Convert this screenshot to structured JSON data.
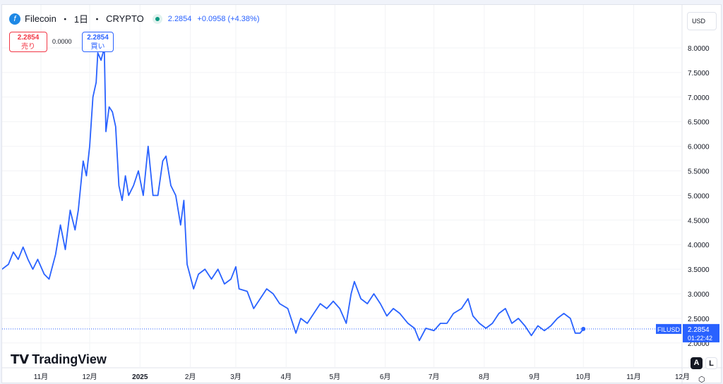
{
  "header": {
    "symbol": "Filecoin",
    "interval": "1日",
    "exchange": "CRYPTO",
    "sep": "・",
    "price": "2.2854",
    "change": "+0.0958 (+4.38%)",
    "icon": "filecoin-logo"
  },
  "trade": {
    "sell_price": "2.2854",
    "sell_label": "売り",
    "spread": "0.0000",
    "buy_price": "2.2854",
    "buy_label": "買い"
  },
  "currency": "USD",
  "brand": "TradingView",
  "scale_buttons": {
    "auto": "A",
    "log": "L"
  },
  "price_tag": {
    "symbol": "FILUSD",
    "price": "2.2854",
    "countdown": "01:22:42"
  },
  "colors": {
    "line": "#2962ff",
    "tag": "#2962ff"
  },
  "chart_data": {
    "type": "line",
    "title": "Filecoin · 1日 · CRYPTO",
    "ylim": [
      1.8,
      8.3
    ],
    "yticks": [
      "2.0000",
      "2.5000",
      "3.0000",
      "3.5000",
      "4.0000",
      "4.5000",
      "5.0000",
      "5.5000",
      "6.0000",
      "6.5000",
      "7.0000",
      "7.5000",
      "8.0000"
    ],
    "xticks": [
      {
        "label": "11月",
        "date": "2024-11-01"
      },
      {
        "label": "12月",
        "date": "2024-12-01"
      },
      {
        "label": "2025",
        "date": "2025-01-01"
      },
      {
        "label": "2月",
        "date": "2025-02-01"
      },
      {
        "label": "3月",
        "date": "2025-03-01"
      },
      {
        "label": "4月",
        "date": "2025-04-01"
      },
      {
        "label": "5月",
        "date": "2025-05-01"
      },
      {
        "label": "6月",
        "date": "2025-06-01"
      },
      {
        "label": "7月",
        "date": "2025-07-01"
      },
      {
        "label": "8月",
        "date": "2025-08-01"
      },
      {
        "label": "9月",
        "date": "2025-09-01"
      },
      {
        "label": "10月",
        "date": "2025-10-01"
      },
      {
        "label": "11月",
        "date": "2025-11-01"
      },
      {
        "label": "12月",
        "date": "2025-12-01"
      }
    ],
    "grid": true,
    "series": [
      {
        "name": "FILUSD",
        "points": [
          [
            "2024-10-08",
            3.5
          ],
          [
            "2024-10-12",
            3.6
          ],
          [
            "2024-10-15",
            3.85
          ],
          [
            "2024-10-18",
            3.7
          ],
          [
            "2024-10-21",
            3.95
          ],
          [
            "2024-10-24",
            3.7
          ],
          [
            "2024-10-27",
            3.5
          ],
          [
            "2024-10-30",
            3.7
          ],
          [
            "2024-11-03",
            3.4
          ],
          [
            "2024-11-06",
            3.3
          ],
          [
            "2024-11-10",
            3.8
          ],
          [
            "2024-11-13",
            4.4
          ],
          [
            "2024-11-16",
            3.9
          ],
          [
            "2024-11-19",
            4.7
          ],
          [
            "2024-11-22",
            4.3
          ],
          [
            "2024-11-24",
            4.7
          ],
          [
            "2024-11-27",
            5.7
          ],
          [
            "2024-11-29",
            5.4
          ],
          [
            "2024-12-01",
            6.0
          ],
          [
            "2024-12-03",
            7.0
          ],
          [
            "2024-12-05",
            7.3
          ],
          [
            "2024-12-06",
            7.9
          ],
          [
            "2024-12-08",
            7.75
          ],
          [
            "2024-12-10",
            8.0
          ],
          [
            "2024-12-11",
            6.3
          ],
          [
            "2024-12-13",
            6.8
          ],
          [
            "2024-12-15",
            6.7
          ],
          [
            "2024-12-17",
            6.4
          ],
          [
            "2024-12-19",
            5.2
          ],
          [
            "2024-12-21",
            4.9
          ],
          [
            "2024-12-23",
            5.4
          ],
          [
            "2024-12-25",
            5.0
          ],
          [
            "2024-12-28",
            5.2
          ],
          [
            "2024-12-31",
            5.5
          ],
          [
            "2025-01-03",
            5.0
          ],
          [
            "2025-01-06",
            6.0
          ],
          [
            "2025-01-09",
            5.0
          ],
          [
            "2025-01-12",
            5.0
          ],
          [
            "2025-01-15",
            5.7
          ],
          [
            "2025-01-17",
            5.8
          ],
          [
            "2025-01-20",
            5.2
          ],
          [
            "2025-01-23",
            5.0
          ],
          [
            "2025-01-26",
            4.4
          ],
          [
            "2025-01-28",
            4.9
          ],
          [
            "2025-01-30",
            3.6
          ],
          [
            "2025-02-03",
            3.1
          ],
          [
            "2025-02-06",
            3.4
          ],
          [
            "2025-02-10",
            3.5
          ],
          [
            "2025-02-14",
            3.3
          ],
          [
            "2025-02-18",
            3.5
          ],
          [
            "2025-02-22",
            3.2
          ],
          [
            "2025-02-26",
            3.3
          ],
          [
            "2025-03-01",
            3.55
          ],
          [
            "2025-03-03",
            3.1
          ],
          [
            "2025-03-08",
            3.05
          ],
          [
            "2025-03-12",
            2.7
          ],
          [
            "2025-03-16",
            2.9
          ],
          [
            "2025-03-20",
            3.1
          ],
          [
            "2025-03-24",
            3.0
          ],
          [
            "2025-03-28",
            2.8
          ],
          [
            "2025-04-02",
            2.7
          ],
          [
            "2025-04-07",
            2.2
          ],
          [
            "2025-04-10",
            2.5
          ],
          [
            "2025-04-14",
            2.4
          ],
          [
            "2025-04-18",
            2.6
          ],
          [
            "2025-04-22",
            2.8
          ],
          [
            "2025-04-26",
            2.7
          ],
          [
            "2025-04-30",
            2.85
          ],
          [
            "2025-05-04",
            2.7
          ],
          [
            "2025-05-08",
            2.4
          ],
          [
            "2025-05-11",
            3.0
          ],
          [
            "2025-05-13",
            3.25
          ],
          [
            "2025-05-17",
            2.9
          ],
          [
            "2025-05-21",
            2.8
          ],
          [
            "2025-05-25",
            3.0
          ],
          [
            "2025-05-29",
            2.8
          ],
          [
            "2025-06-02",
            2.55
          ],
          [
            "2025-06-06",
            2.7
          ],
          [
            "2025-06-10",
            2.6
          ],
          [
            "2025-06-15",
            2.4
          ],
          [
            "2025-06-19",
            2.3
          ],
          [
            "2025-06-22",
            2.05
          ],
          [
            "2025-06-26",
            2.3
          ],
          [
            "2025-07-01",
            2.25
          ],
          [
            "2025-07-05",
            2.4
          ],
          [
            "2025-07-09",
            2.4
          ],
          [
            "2025-07-13",
            2.6
          ],
          [
            "2025-07-18",
            2.7
          ],
          [
            "2025-07-22",
            2.9
          ],
          [
            "2025-07-25",
            2.55
          ],
          [
            "2025-07-29",
            2.4
          ],
          [
            "2025-08-02",
            2.3
          ],
          [
            "2025-08-06",
            2.4
          ],
          [
            "2025-08-10",
            2.6
          ],
          [
            "2025-08-14",
            2.7
          ],
          [
            "2025-08-18",
            2.4
          ],
          [
            "2025-08-22",
            2.5
          ],
          [
            "2025-08-26",
            2.35
          ],
          [
            "2025-08-30",
            2.15
          ],
          [
            "2025-09-03",
            2.35
          ],
          [
            "2025-09-07",
            2.25
          ],
          [
            "2025-09-11",
            2.35
          ],
          [
            "2025-09-15",
            2.5
          ],
          [
            "2025-09-19",
            2.6
          ],
          [
            "2025-09-23",
            2.5
          ],
          [
            "2025-09-26",
            2.2
          ],
          [
            "2025-09-29",
            2.2
          ],
          [
            "2025-10-01",
            2.2854
          ]
        ]
      }
    ]
  }
}
